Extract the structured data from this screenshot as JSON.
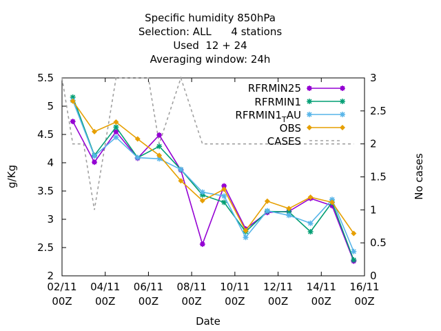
{
  "chart_data": {
    "type": "line",
    "title_lines": [
      "Specific humidity 850hPa",
      "Selection: ALL      4 stations",
      "Used  12 + 24",
      "Averaging window: 24h"
    ],
    "xlabel": "Date",
    "ylabel": "g/Kg",
    "y2label": "No cases",
    "xlim": [
      "2024-11-02 00:00",
      "2024-11-16 00:00"
    ],
    "x_ticks": [
      {
        "x": "2024-11-02 00:00",
        "line1": "02/11",
        "line2": "00Z"
      },
      {
        "x": "2024-11-04 00:00",
        "line1": "04/11",
        "line2": "00Z"
      },
      {
        "x": "2024-11-06 00:00",
        "line1": "06/11",
        "line2": "00Z"
      },
      {
        "x": "2024-11-08 00:00",
        "line1": "08/11",
        "line2": "00Z"
      },
      {
        "x": "2024-11-10 00:00",
        "line1": "10/11",
        "line2": "00Z"
      },
      {
        "x": "2024-11-12 00:00",
        "line1": "12/11",
        "line2": "00Z"
      },
      {
        "x": "2024-11-14 00:00",
        "line1": "14/11",
        "line2": "00Z"
      },
      {
        "x": "2024-11-16 00:00",
        "line1": "16/11",
        "line2": "00Z"
      }
    ],
    "ylim": [
      2,
      5.5
    ],
    "y_ticks": [
      "2",
      "2.5",
      "3",
      "3.5",
      "4",
      "4.5",
      "5",
      "5.5"
    ],
    "y2lim": [
      0,
      3
    ],
    "y2_ticks": [
      "0",
      "0.5",
      "1",
      "1.5",
      "2",
      "2.5",
      "3"
    ],
    "x": [
      "2024-11-02 12:00",
      "2024-11-03 12:00",
      "2024-11-04 12:00",
      "2024-11-05 12:00",
      "2024-11-06 12:00",
      "2024-11-07 12:00",
      "2024-11-08 12:00",
      "2024-11-09 12:00",
      "2024-11-10 12:00",
      "2024-11-11 12:00",
      "2024-11-12 12:00",
      "2024-11-13 12:00",
      "2024-11-14 12:00",
      "2024-11-15 12:00"
    ],
    "series": [
      {
        "name": "RFRMIN25",
        "color": "#9400d3",
        "marker": "plus",
        "values": [
          4.73,
          4.01,
          4.55,
          4.08,
          4.49,
          3.87,
          2.56,
          3.59,
          2.83,
          3.12,
          3.14,
          3.37,
          3.24,
          2.26
        ]
      },
      {
        "name": "RFRMIN1",
        "color": "#009e73",
        "marker": "star",
        "values": [
          5.16,
          4.13,
          4.63,
          4.09,
          4.29,
          3.88,
          3.43,
          3.3,
          2.78,
          3.14,
          3.13,
          2.78,
          3.3,
          2.28
        ]
      },
      {
        "name": "RFRMIN1_AU",
        "label_main": "RFRMIN1",
        "label_sub": "T",
        "label_tail": "AU",
        "color": "#56b4e9",
        "marker": "star",
        "values": [
          5.1,
          4.12,
          4.45,
          4.09,
          4.07,
          3.88,
          3.48,
          3.41,
          2.68,
          3.15,
          3.07,
          2.93,
          3.35,
          2.43
        ]
      },
      {
        "name": "OBS",
        "color": "#e69f00",
        "marker": "diamond",
        "values": [
          5.09,
          4.55,
          4.72,
          4.42,
          4.13,
          3.68,
          3.33,
          3.53,
          2.8,
          3.32,
          3.19,
          3.39,
          3.3,
          2.75
        ]
      }
    ],
    "cases": {
      "name": "CASES",
      "color": "#a0a0a0",
      "axis": "y2",
      "x": [
        "2024-11-02 00:00",
        "2024-11-02 12:00",
        "2024-11-03 00:00",
        "2024-11-03 12:00",
        "2024-11-04 00:00",
        "2024-11-04 12:00",
        "2024-11-05 00:00",
        "2024-11-05 12:00",
        "2024-11-06 00:00",
        "2024-11-06 12:00",
        "2024-11-07 00:00",
        "2024-11-07 12:00",
        "2024-11-08 00:00",
        "2024-11-08 12:00",
        "2024-11-09 00:00",
        "2024-11-10 00:00",
        "2024-11-11 00:00",
        "2024-11-12 00:00",
        "2024-11-13 00:00",
        "2024-11-14 00:00",
        "2024-11-15 00:00",
        "2024-11-15 12:00"
      ],
      "values": [
        3,
        2,
        2,
        1,
        2,
        3,
        3,
        3,
        3,
        2,
        2.5,
        3,
        2.5,
        2,
        2,
        2,
        2,
        2,
        2,
        2,
        2,
        2
      ]
    },
    "grid": false,
    "legend_position": "top-right"
  }
}
